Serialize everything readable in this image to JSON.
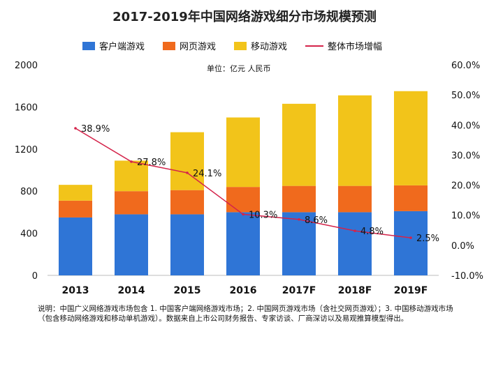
{
  "title": "2017-2019年中国网络游戏细分市场规模预测",
  "unit_label": "单位：亿元 人民币",
  "note": "说明：中国广义网络游戏市场包含 1. 中国客户端网络游戏市场；2. 中国网页游戏市场（含社交网页游戏）；3. 中国移动游戏市场（包含移动网络游戏和移动单机游戏）。数据来自上市公司财务报告、专家访谈、厂商深访以及易观推算模型得出。",
  "legend": {
    "client": "客户端游戏",
    "web": "网页游戏",
    "mobile": "移动游戏",
    "growth": "整体市场增幅"
  },
  "colors": {
    "client": "#2f75d6",
    "web": "#f06a1d",
    "mobile": "#f2c41a",
    "growth": "#d4234a"
  },
  "chart_data": {
    "type": "bar",
    "stacked": true,
    "categories": [
      "2013",
      "2014",
      "2015",
      "2016",
      "2017F",
      "2018F",
      "2019F"
    ],
    "series": [
      {
        "name": "客户端游戏",
        "values": [
          550,
          580,
          580,
          600,
          600,
          600,
          610
        ]
      },
      {
        "name": "网页游戏",
        "values": [
          160,
          220,
          230,
          240,
          250,
          250,
          245
        ]
      },
      {
        "name": "移动游戏",
        "values": [
          150,
          290,
          550,
          660,
          780,
          860,
          895
        ]
      }
    ],
    "line": {
      "name": "整体市场增幅",
      "axis": "right",
      "values": [
        38.9,
        27.8,
        24.1,
        10.3,
        8.6,
        4.8,
        2.5
      ],
      "labels": [
        "38.9%",
        "27.8%",
        "24.1%",
        "10.3%",
        "8.6%",
        "4.8%",
        "2.5%"
      ]
    },
    "y_left": {
      "ticks": [
        "0",
        "400",
        "800",
        "1200",
        "1600",
        "2000"
      ],
      "lim": [
        0,
        2000
      ]
    },
    "y_right": {
      "ticks": [
        "-10.0%",
        "0.0%",
        "10.0%",
        "20.0%",
        "30.0%",
        "40.0%",
        "50.0%",
        "60.0%"
      ],
      "lim": [
        -10,
        60
      ]
    }
  }
}
